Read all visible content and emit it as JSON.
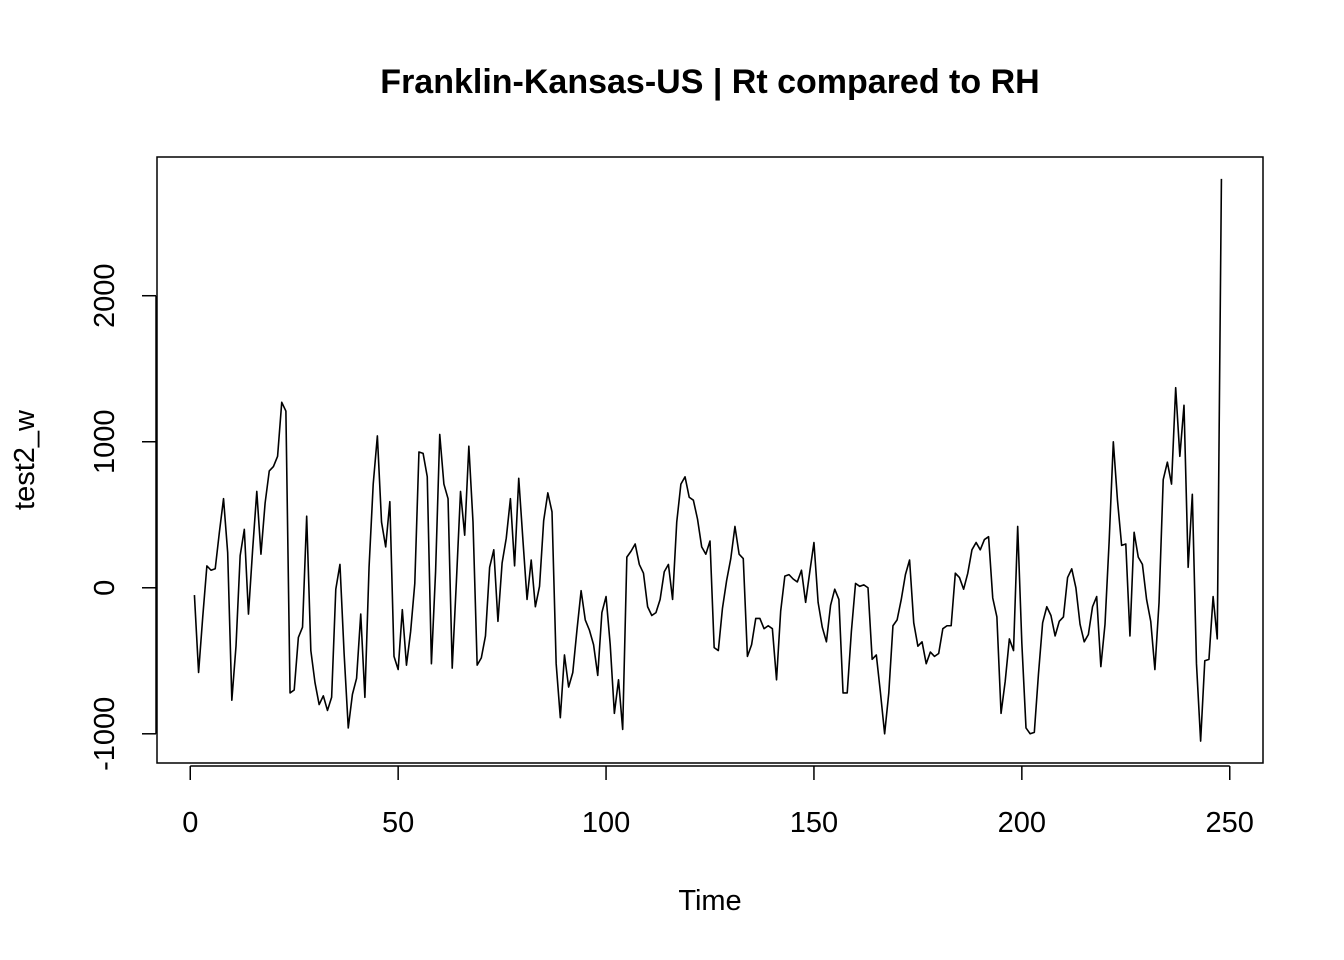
{
  "chart_data": {
    "type": "line",
    "title": "Franklin-Kansas-US | Rt compared to RH",
    "xlabel": "Time",
    "ylabel": "test2_w",
    "xlim": [
      -8,
      258
    ],
    "ylim": [
      -1200,
      2950
    ],
    "x_ticks": [
      0,
      50,
      100,
      150,
      200,
      250
    ],
    "y_ticks": [
      -1000,
      0,
      1000,
      2000
    ],
    "grid": false,
    "line_color": "#000000",
    "series": [
      {
        "x_start": 1,
        "values": [
          -50,
          -580,
          -200,
          150,
          120,
          130,
          380,
          610,
          240,
          -770,
          -400,
          220,
          400,
          -180,
          260,
          660,
          230,
          580,
          800,
          830,
          900,
          1270,
          1210,
          -720,
          -700,
          -340,
          -270,
          490,
          -430,
          -650,
          -800,
          -740,
          -840,
          -750,
          -10,
          160,
          -450,
          -960,
          -730,
          -620,
          -180,
          -750,
          140,
          710,
          1040,
          450,
          280,
          590,
          -470,
          -560,
          -150,
          -530,
          -300,
          30,
          930,
          920,
          760,
          -520,
          110,
          1050,
          710,
          610,
          -550,
          40,
          660,
          360,
          970,
          450,
          -530,
          -480,
          -330,
          140,
          260,
          -230,
          170,
          340,
          610,
          150,
          750,
          330,
          -80,
          190,
          -130,
          10,
          460,
          650,
          520,
          -520,
          -890,
          -460,
          -680,
          -580,
          -290,
          -20,
          -220,
          -290,
          -390,
          -600,
          -170,
          -60,
          -390,
          -860,
          -630,
          -970,
          210,
          250,
          300,
          160,
          100,
          -130,
          -190,
          -170,
          -80,
          110,
          160,
          -80,
          450,
          710,
          760,
          620,
          600,
          470,
          280,
          230,
          320,
          -410,
          -430,
          -140,
          50,
          200,
          420,
          230,
          200,
          -470,
          -390,
          -210,
          -210,
          -280,
          -260,
          -280,
          -630,
          -160,
          80,
          90,
          60,
          40,
          120,
          -100,
          110,
          310,
          -100,
          -270,
          -370,
          -120,
          -10,
          -80,
          -720,
          -720,
          -300,
          30,
          10,
          20,
          0,
          -490,
          -460,
          -720,
          -1000,
          -720,
          -260,
          -220,
          -80,
          90,
          190,
          -240,
          -400,
          -370,
          -520,
          -440,
          -470,
          -450,
          -280,
          -260,
          -260,
          100,
          70,
          -10,
          100,
          260,
          310,
          260,
          330,
          350,
          -70,
          -200,
          -860,
          -640,
          -350,
          -430,
          420,
          -380,
          -960,
          -1000,
          -990,
          -590,
          -240,
          -130,
          -190,
          -330,
          -230,
          -200,
          70,
          130,
          0,
          -250,
          -370,
          -320,
          -130,
          -60,
          -540,
          -250,
          320,
          1000,
          600,
          290,
          300,
          -330,
          380,
          210,
          160,
          -80,
          -230,
          -560,
          -100,
          740,
          860,
          710,
          1370,
          900,
          1250,
          140,
          640,
          -520,
          -1050,
          -500,
          -490,
          -60,
          -350,
          2800
        ]
      }
    ]
  }
}
